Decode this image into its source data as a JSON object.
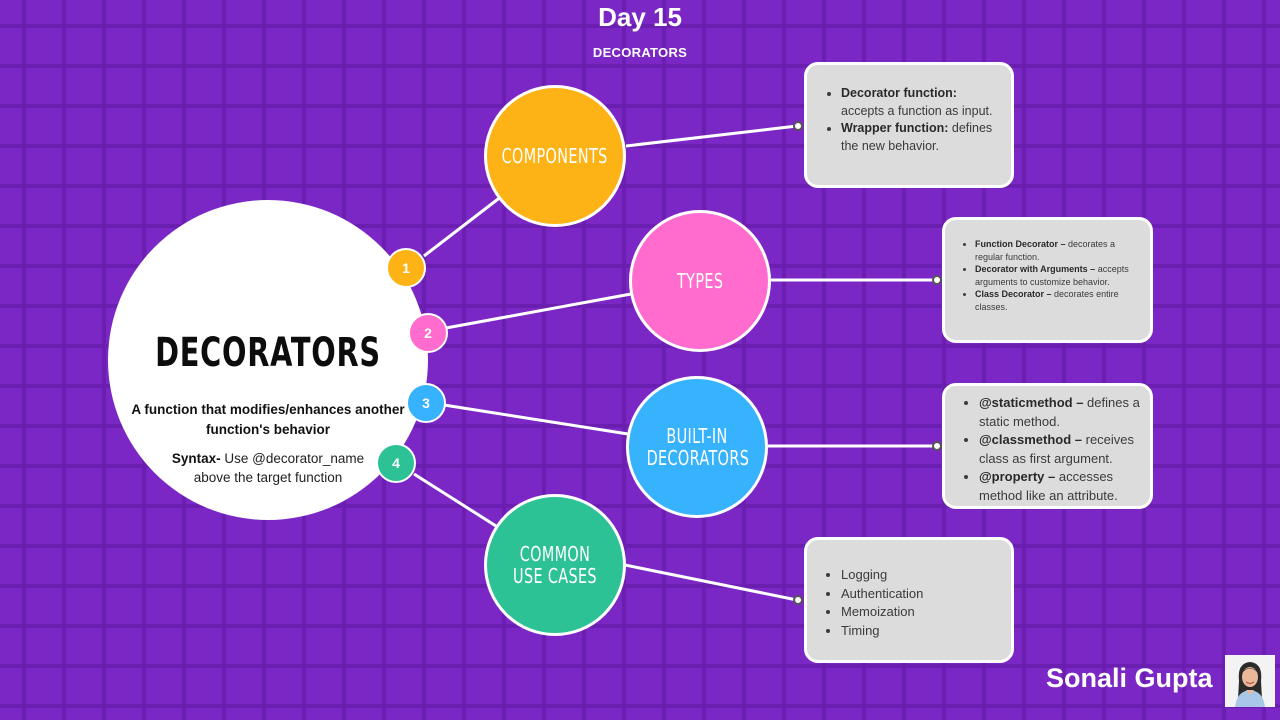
{
  "header": {
    "title": "Day 15",
    "subtitle": "DECORATORS"
  },
  "main": {
    "heading": "DECORATORS",
    "description": "A function that modifies/enhances another function's behavior",
    "syntax_label": "Syntax-",
    "syntax_text": " Use @decorator_name above the target function"
  },
  "branches": [
    {
      "number": "1",
      "label": "COMPONENTS",
      "color": "#fdb316"
    },
    {
      "number": "2",
      "label": "TYPES",
      "color": "#ff6ccd"
    },
    {
      "number": "3",
      "label": "BUILT-IN DECORATORS",
      "color": "#37b2fd"
    },
    {
      "number": "4",
      "label": "COMMON USE CASES",
      "color": "#2dc295"
    }
  ],
  "cards": {
    "components": [
      {
        "bold": "Decorator function:",
        "text": " accepts a function as input."
      },
      {
        "bold": "Wrapper function:",
        "text": " defines the new behavior."
      }
    ],
    "types": [
      {
        "bold": "Function Decorator –",
        "text": " decorates a regular function."
      },
      {
        "bold": "Decorator with Arguments –",
        "text": " accepts arguments to customize behavior."
      },
      {
        "bold": "Class Decorator –",
        "text": " decorates entire classes."
      }
    ],
    "builtin": [
      {
        "bold": "@staticmethod –",
        "text": " defines a static method."
      },
      {
        "bold": " @classmethod –",
        "text": " receives class as first argument."
      },
      {
        "bold": "@property –",
        "text": " accesses method like an attribute."
      }
    ],
    "common": [
      "Logging",
      "Authentication",
      "Memoization",
      "Timing"
    ]
  },
  "author": "Sonali Gupta",
  "colors": {
    "background": "#7b27c6",
    "grid": "#6a1fb0",
    "card": "#dcdcdc"
  }
}
